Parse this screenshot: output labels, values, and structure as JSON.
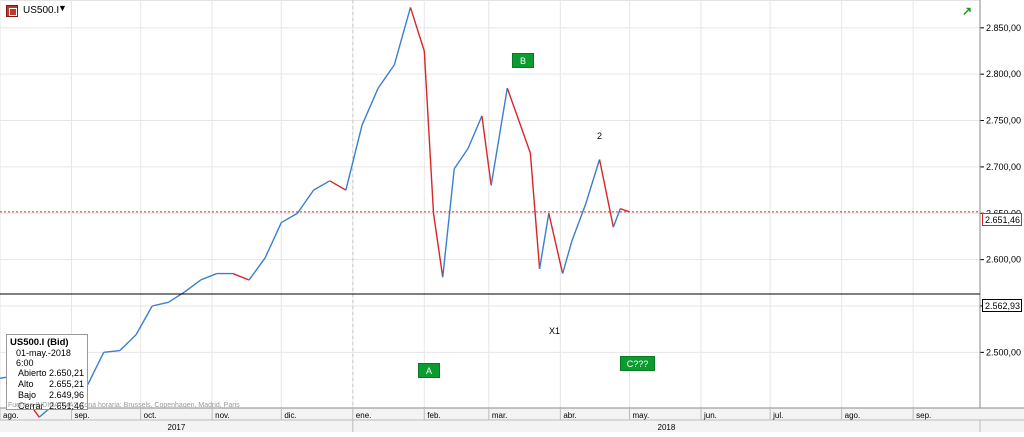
{
  "header": {
    "symbol": "US500.I",
    "symbol_icon": "flag-icon",
    "dropdown_icon": "chevron-down-icon",
    "dropdown_glyph": "▼",
    "trend_icon": "trend-up-icon",
    "trend_glyph": "↗"
  },
  "info_box": {
    "title": "US500.I (Bid)",
    "datetime": "01-may.-2018 6:00",
    "rows": [
      {
        "label": "Abierto",
        "value": "2.650,21"
      },
      {
        "label": "Alto",
        "value": "2.655,21"
      },
      {
        "label": "Bajo",
        "value": "2.649,96"
      },
      {
        "label": "Cerrar",
        "value": "2.651,46"
      }
    ]
  },
  "footer_text": "Fuentes INDICATIVAS Zona horaria: Brussels, Copenhagen, Madrid, Paris",
  "annotations": {
    "tags": [
      "A",
      "B",
      "C???"
    ],
    "labels": [
      "2",
      "X1"
    ]
  },
  "price_tags": [
    {
      "label": "2.651,46",
      "value": 2651.46,
      "color": "#d62728",
      "line": "dotted"
    },
    {
      "label": "2.562,93",
      "value": 2562.93,
      "color": "#000000",
      "line": "solid"
    }
  ],
  "colors": {
    "up": "#3a7fd0",
    "down": "#d62728",
    "tag_bg": "#0a9c2e",
    "grid": "#e6e6e6"
  },
  "chart_data": {
    "type": "line",
    "title": "",
    "xlabel": "",
    "ylabel": "",
    "ylim": [
      2440,
      2880
    ],
    "x_start": "2017-08-01",
    "x_end": "2018-09-30",
    "grid": true,
    "y_ticks": [
      "2.500,00",
      "2.550,00",
      "2.600,00",
      "2.650,00",
      "2.700,00",
      "2.750,00",
      "2.800,00",
      "2.850,00"
    ],
    "y_tick_values": [
      2500,
      2550,
      2600,
      2650,
      2700,
      2750,
      2800,
      2850
    ],
    "month_labels": [
      {
        "date": "2017-08-01",
        "label": "ago."
      },
      {
        "date": "2017-09-01",
        "label": "sep."
      },
      {
        "date": "2017-10-01",
        "label": "oct."
      },
      {
        "date": "2017-11-01",
        "label": "nov."
      },
      {
        "date": "2017-12-01",
        "label": "dic."
      },
      {
        "date": "2018-01-01",
        "label": "ene."
      },
      {
        "date": "2018-02-01",
        "label": "feb."
      },
      {
        "date": "2018-03-01",
        "label": "mar."
      },
      {
        "date": "2018-04-01",
        "label": "abr."
      },
      {
        "date": "2018-05-01",
        "label": "may."
      },
      {
        "date": "2018-06-01",
        "label": "jun."
      },
      {
        "date": "2018-07-01",
        "label": "jul."
      },
      {
        "date": "2018-08-01",
        "label": "ago."
      },
      {
        "date": "2018-09-01",
        "label": "sep."
      }
    ],
    "years": [
      {
        "label": "2017",
        "from": "2017-08-01",
        "to": "2018-01-01"
      },
      {
        "label": "2018",
        "from": "2018-01-01",
        "to": "2018-09-30"
      }
    ],
    "series": [
      {
        "x": [
          "2017-08-01",
          "2017-08-08",
          "2017-08-11",
          "2017-08-18",
          "2017-08-25",
          "2017-09-01",
          "2017-09-08",
          "2017-09-15",
          "2017-09-22",
          "2017-09-29",
          "2017-10-06",
          "2017-10-13",
          "2017-10-20",
          "2017-10-27",
          "2017-11-03",
          "2017-11-10",
          "2017-11-17",
          "2017-11-24",
          "2017-12-01",
          "2017-12-08",
          "2017-12-15",
          "2017-12-22",
          "2017-12-29",
          "2018-01-05",
          "2018-01-12",
          "2018-01-19",
          "2018-01-26",
          "2018-02-01",
          "2018-02-05",
          "2018-02-09",
          "2018-02-14",
          "2018-02-20",
          "2018-02-26",
          "2018-03-02",
          "2018-03-09",
          "2018-03-14",
          "2018-03-19",
          "2018-03-23",
          "2018-03-27",
          "2018-04-02",
          "2018-04-06",
          "2018-04-12",
          "2018-04-18",
          "2018-04-24",
          "2018-04-27",
          "2018-05-01"
        ],
        "y": [
          2472,
          2475,
          2455,
          2430,
          2445,
          2472,
          2465,
          2500,
          2502,
          2519,
          2550,
          2554,
          2565,
          2578,
          2585,
          2585,
          2578,
          2602,
          2640,
          2650,
          2675,
          2685,
          2675,
          2745,
          2785,
          2810,
          2872,
          2825,
          2650,
          2581,
          2698,
          2720,
          2755,
          2680,
          2785,
          2750,
          2715,
          2590,
          2650,
          2585,
          2620,
          2660,
          2708,
          2635,
          2655,
          2651.46
        ]
      }
    ]
  }
}
